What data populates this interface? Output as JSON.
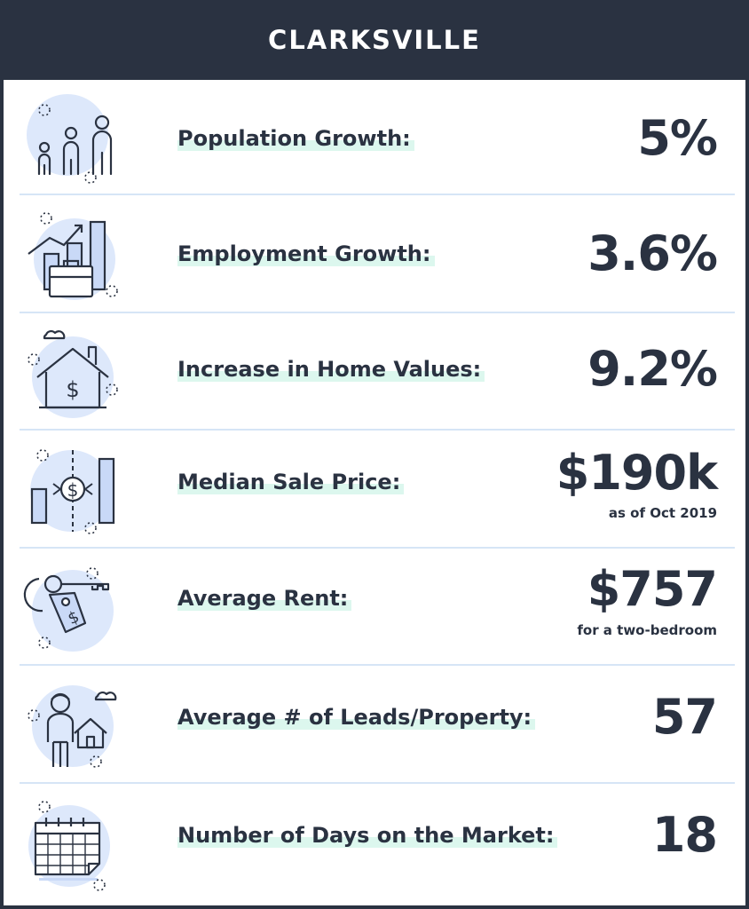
{
  "title": "CLARKSVILLE",
  "colors": {
    "dark": "#2a3241",
    "accent_fill": "#dde8fb",
    "highlight": "#dcf7ee",
    "divider": "#d6e5f6"
  },
  "stats": [
    {
      "icon": "family-icon",
      "label": "Population Growth:",
      "value": "5%"
    },
    {
      "icon": "employment-chart-icon",
      "label": "Employment Growth:",
      "value": "3.6%"
    },
    {
      "icon": "house-dollar-icon",
      "label": "Increase in Home Values:",
      "value": "9.2%"
    },
    {
      "icon": "price-chart-icon",
      "label": "Median Sale Price:",
      "value": "$190k",
      "note": "as  of Oct 2019"
    },
    {
      "icon": "key-tag-icon",
      "label": "Average Rent:",
      "value": "$757",
      "note": "for a two-bedroom"
    },
    {
      "icon": "person-house-icon",
      "label": "Average # of Leads/Property:",
      "value": "57"
    },
    {
      "icon": "calendar-icon",
      "label": "Number of Days on the Market:",
      "value": "18"
    }
  ]
}
